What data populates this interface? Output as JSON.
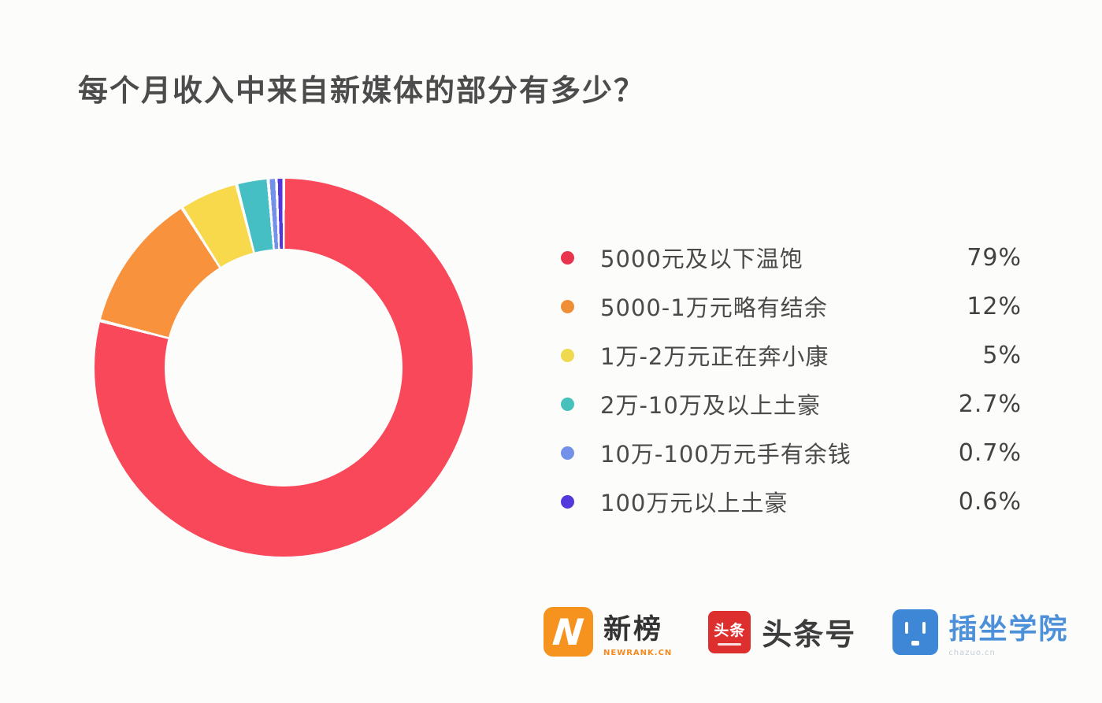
{
  "page": {
    "background": "#fcfcfb",
    "title": "每个月收入中来自新媒体的部分有多少？"
  },
  "chart_data": {
    "type": "pie",
    "subtype": "donut",
    "title": "每个月收入中来自新媒体的部分有多少？",
    "start_angle_deg": 0,
    "direction": "clockwise",
    "categories": [
      "5000元及以下温饱",
      "5000-1万元略有结余",
      "1万-2万元正在奔小康",
      "2万-10万及以上土豪",
      "10万-100万元手有余钱",
      "100万元以上土豪"
    ],
    "values": [
      79,
      12,
      5,
      2.7,
      0.7,
      0.6
    ],
    "unit": "%",
    "colors": [
      "#f8485a",
      "#f9923d",
      "#f8d94b",
      "#45bfc4",
      "#7491e9",
      "#5338db"
    ],
    "gap_color": "#fcfcfb",
    "legend_position": "right"
  },
  "legend": {
    "items": [
      {
        "label": "5000元及以下温饱",
        "value": "79%",
        "color": "#e8354d"
      },
      {
        "label": "5000-1万元略有结余",
        "value": "12%",
        "color": "#ee8f38"
      },
      {
        "label": "1万-2万元正在奔小康",
        "value": "5%",
        "color": "#efd94f"
      },
      {
        "label": "2万-10万及以上土豪",
        "value": "2.7%",
        "color": "#45c0bb"
      },
      {
        "label": "10万-100万元手有余钱",
        "value": "0.7%",
        "color": "#7491e9"
      },
      {
        "label": "100万元以上土豪",
        "value": "0.6%",
        "color": "#5338db"
      }
    ]
  },
  "footer": {
    "newrank": {
      "icon_letter": "N",
      "name": "新榜",
      "subtext": "NEWRANK.CN"
    },
    "toutiao": {
      "badge": "头条",
      "name": "头条号"
    },
    "chazuo": {
      "name": "插坐学院",
      "subtext": "chazuo.cn"
    }
  }
}
